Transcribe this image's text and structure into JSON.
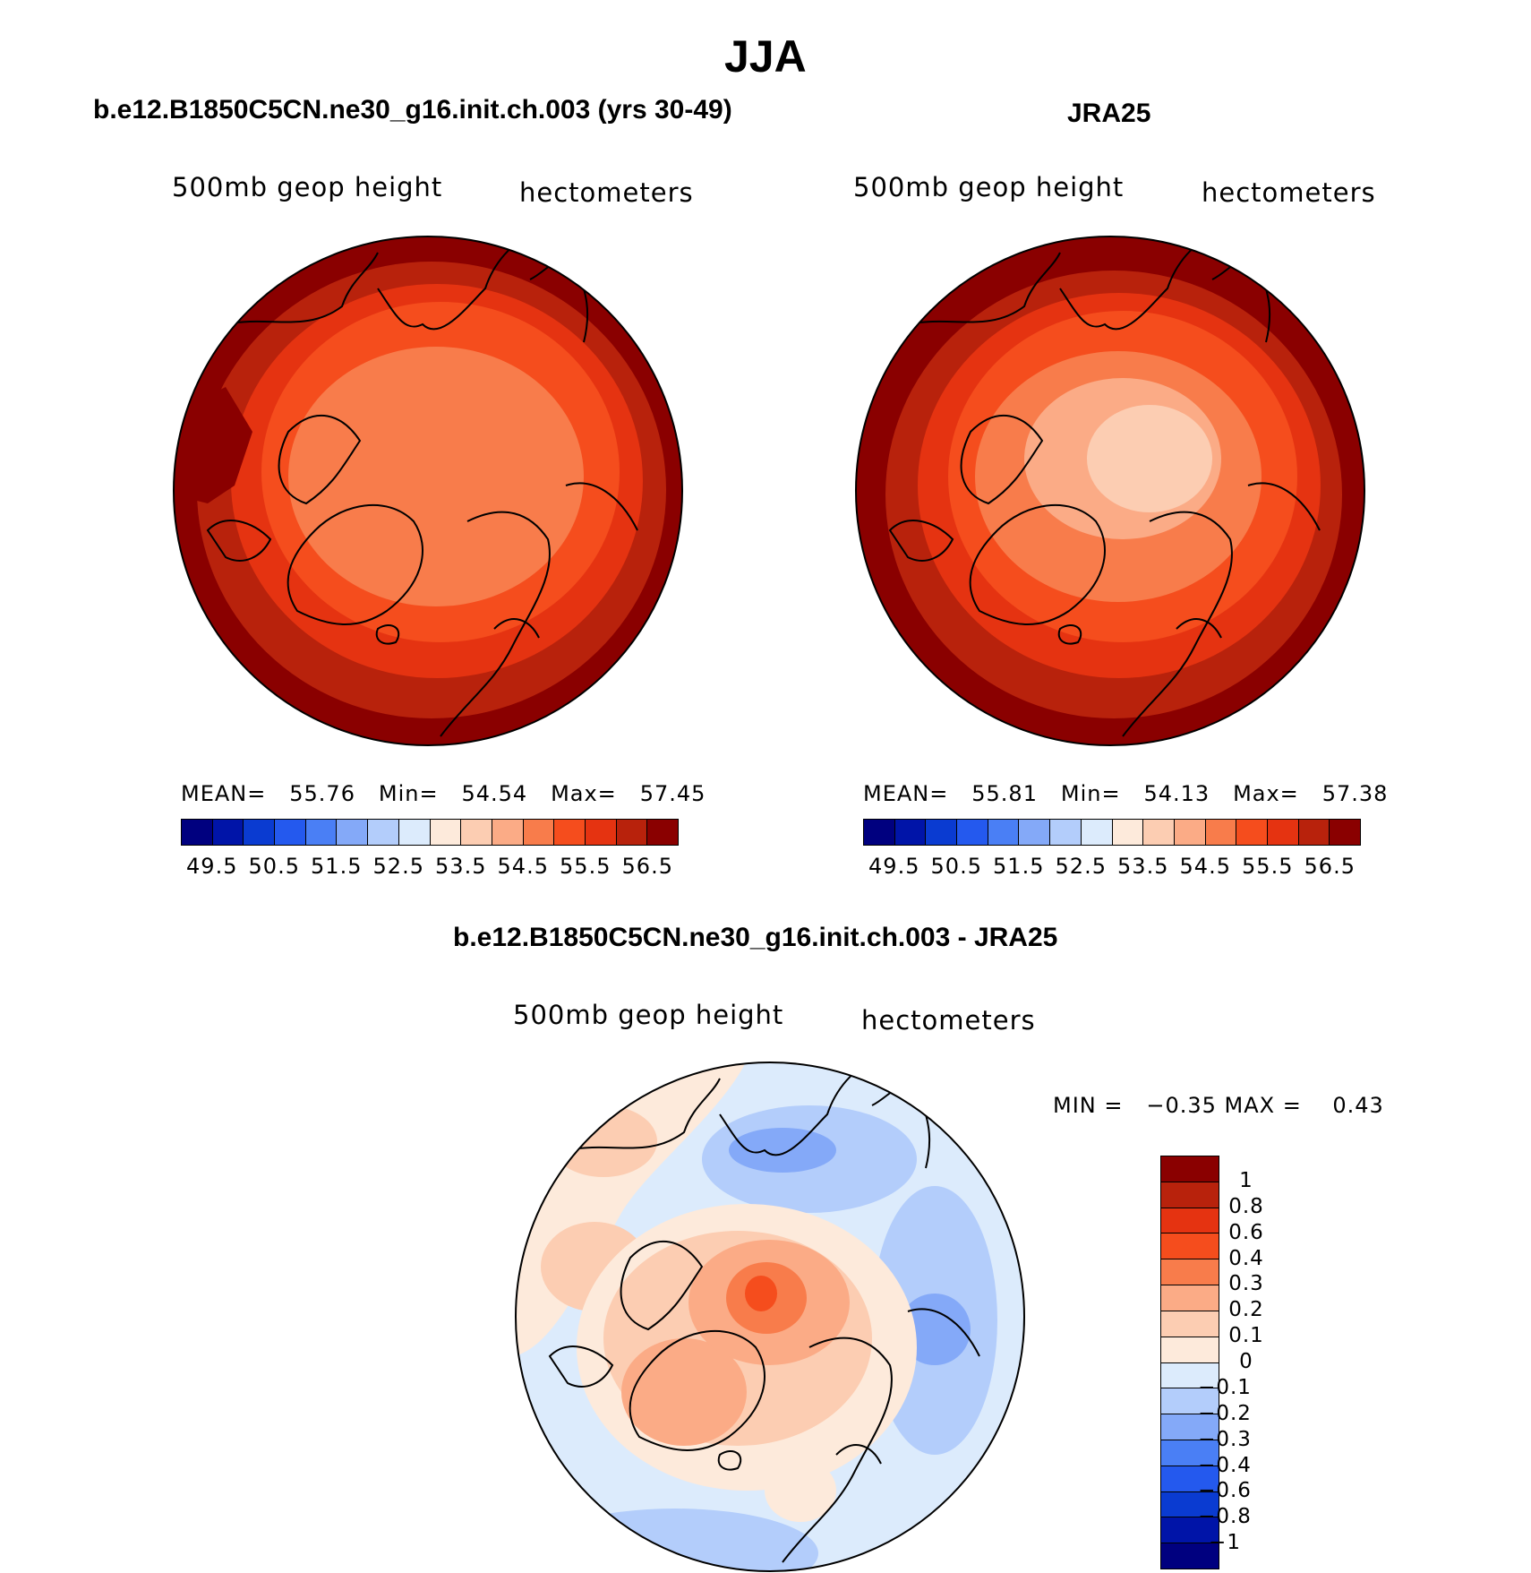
{
  "figure": {
    "season": "JJA",
    "panels": [
      {
        "title": "b.e12.B1850C5CN.ne30_g16.init.ch.003 (yrs 30-49)",
        "variable": "500mb geop height",
        "units": "hectometers",
        "stats": {
          "mean_label": "MEAN=",
          "mean": "55.76",
          "min_label": "Min=",
          "min": "54.54",
          "max_label": "Max=",
          "max": "57.45"
        }
      },
      {
        "title": "JRA25",
        "variable": "500mb geop height",
        "units": "hectometers",
        "stats": {
          "mean_label": "MEAN=",
          "mean": "55.81",
          "min_label": "Min=",
          "min": "54.13",
          "max_label": "Max=",
          "max": "57.38"
        }
      },
      {
        "title": "b.e12.B1850C5CN.ne30_g16.init.ch.003 - JRA25",
        "variable": "500mb geop height",
        "units": "hectometers",
        "stats_text": "MIN =   −0.35 MAX =    0.43"
      }
    ],
    "abs_colorbar": {
      "colors": [
        "#00007f",
        "#0014a8",
        "#0a3bd1",
        "#2459ee",
        "#4a7ff5",
        "#84a9f8",
        "#b3cdfb",
        "#dcebfc",
        "#fdeadb",
        "#fccdb2",
        "#fbab86",
        "#f87c4b",
        "#f54d1d",
        "#e53311",
        "#b8220c",
        "#8a0000"
      ],
      "tick_labels": [
        "49.5",
        "50.5",
        "51.5",
        "52.5",
        "53.5",
        "54.5",
        "55.5",
        "56.5"
      ]
    },
    "diff_colorbar": {
      "colors": [
        "#8a0000",
        "#b8220c",
        "#e53311",
        "#f54d1d",
        "#f87c4b",
        "#fbab86",
        "#fccdb2",
        "#fdeadb",
        "#dcebfc",
        "#b3cdfb",
        "#84a9f8",
        "#4a7ff5",
        "#2459ee",
        "#0a3bd1",
        "#0014a8",
        "#00007f"
      ],
      "tick_labels": [
        "1",
        "0.8",
        "0.6",
        "0.4",
        "0.3",
        "0.2",
        "0.1",
        "0",
        "−0.1",
        "−0.2",
        "−0.3",
        "−0.4",
        "−0.6",
        "−0.8",
        "−1"
      ]
    }
  }
}
